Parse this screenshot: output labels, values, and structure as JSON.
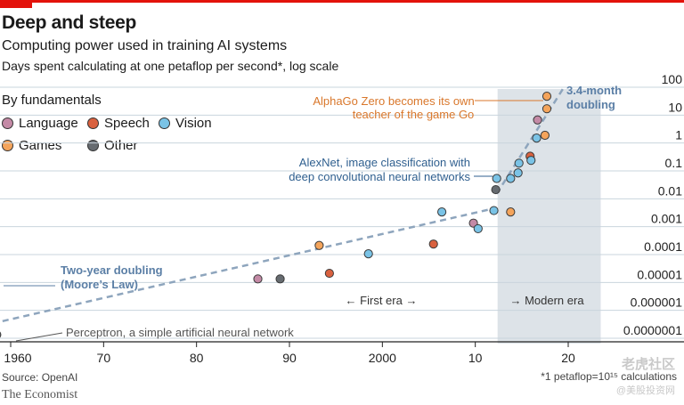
{
  "header": {
    "title": "Deep and steep",
    "subtitle": "Computing power used in training AI systems",
    "description": "Days spent calculating at one petaflop per second*, log scale"
  },
  "legend": {
    "title": "By fundamentals",
    "items": [
      {
        "label": "Language",
        "color": "#c48aa6"
      },
      {
        "label": "Speech",
        "color": "#d9613f"
      },
      {
        "label": "Vision",
        "color": "#7ac3e6"
      },
      {
        "label": "Games",
        "color": "#f4a45b"
      },
      {
        "label": "Other",
        "color": "#666b70"
      }
    ]
  },
  "footer": {
    "source": "Source: OpenAI",
    "brand": "The Economist",
    "footnote": "*1 petaflop=10¹⁵ calculations",
    "watermark": "老虎社区",
    "watermark_sub": "@美股投资网"
  },
  "chart_data": {
    "type": "scatter",
    "yscale": "log",
    "xlim": [
      1958,
      2023
    ],
    "ylim": [
      1e-07,
      100
    ],
    "x_ticks": [
      {
        "value": 1960,
        "label": "1960"
      },
      {
        "value": 1970,
        "label": "70"
      },
      {
        "value": 1980,
        "label": "80"
      },
      {
        "value": 1990,
        "label": "90"
      },
      {
        "value": 2000,
        "label": "2000"
      },
      {
        "value": 2010,
        "label": "10"
      },
      {
        "value": 2020,
        "label": "20"
      }
    ],
    "y_ticks": [
      {
        "exp": 2,
        "label": "100"
      },
      {
        "exp": 1,
        "label": "10"
      },
      {
        "exp": 0,
        "label": "1"
      },
      {
        "exp": -1,
        "label": "0.1"
      },
      {
        "exp": -2,
        "label": "0.01"
      },
      {
        "exp": -3,
        "label": "0.001"
      },
      {
        "exp": -4,
        "label": "0.0001"
      },
      {
        "exp": -5,
        "label": "0.00001"
      },
      {
        "exp": -6,
        "label": "0.000001"
      },
      {
        "exp": -7,
        "label": "0.0000001"
      }
    ],
    "modern_era_range": [
      2012.4,
      2023.5
    ],
    "points": [
      {
        "year": 1958.5,
        "exp": -7.0,
        "category": "Other"
      },
      {
        "year": 1986.6,
        "exp": -5.0,
        "category": "Language"
      },
      {
        "year": 1989.0,
        "exp": -5.0,
        "category": "Other"
      },
      {
        "year": 1993.2,
        "exp": -3.8,
        "category": "Games"
      },
      {
        "year": 1994.3,
        "exp": -4.8,
        "category": "Speech"
      },
      {
        "year": 1998.5,
        "exp": -4.1,
        "category": "Vision"
      },
      {
        "year": 2005.5,
        "exp": -3.75,
        "category": "Speech"
      },
      {
        "year": 2006.4,
        "exp": -2.6,
        "category": "Vision"
      },
      {
        "year": 2009.8,
        "exp": -3.0,
        "category": "Language"
      },
      {
        "year": 2010.3,
        "exp": -3.2,
        "category": "Vision"
      },
      {
        "year": 2012.0,
        "exp": -2.55,
        "category": "Vision"
      },
      {
        "year": 2012.2,
        "exp": -1.8,
        "category": "Other"
      },
      {
        "year": 2012.3,
        "exp": -1.4,
        "category": "Vision"
      },
      {
        "year": 2013.8,
        "exp": -2.6,
        "category": "Games"
      },
      {
        "year": 2013.8,
        "exp": -1.4,
        "category": "Vision"
      },
      {
        "year": 2014.6,
        "exp": -1.2,
        "category": "Vision"
      },
      {
        "year": 2014.7,
        "exp": -0.85,
        "category": "Vision"
      },
      {
        "year": 2015.9,
        "exp": -0.6,
        "category": "Speech"
      },
      {
        "year": 2016.0,
        "exp": -0.75,
        "category": "Vision"
      },
      {
        "year": 2016.6,
        "exp": 0.05,
        "category": "Vision"
      },
      {
        "year": 2016.7,
        "exp": 0.7,
        "category": "Language"
      },
      {
        "year": 2017.5,
        "exp": 0.15,
        "category": "Games"
      },
      {
        "year": 2017.7,
        "exp": 1.1,
        "category": "Games"
      },
      {
        "year": 2017.7,
        "exp": 1.55,
        "category": "Games"
      }
    ],
    "trend_lines": [
      {
        "name": "Two-year doubling",
        "from": {
          "year": 1958,
          "exp": -6.6
        },
        "to": {
          "year": 2012.3,
          "exp": -2.45
        }
      },
      {
        "name": "3.4-month doubling",
        "from": {
          "year": 2012.3,
          "exp": -1.95
        },
        "to": {
          "year": 2019.5,
          "exp": 1.85
        }
      }
    ],
    "annotations": {
      "alphago": [
        "AlphaGo Zero becomes its own",
        "teacher of the game Go"
      ],
      "alexnet": [
        "AlexNet, image classification with",
        "deep convolutional neural networks"
      ],
      "moores": [
        "Two-year doubling",
        "(Moore’s Law)"
      ],
      "fast": [
        "3.4-month",
        "doubling"
      ],
      "perceptron": "Perceptron, a simple artificial neural network",
      "first_era": "← First era →",
      "modern_era": "→ Modern era"
    }
  }
}
